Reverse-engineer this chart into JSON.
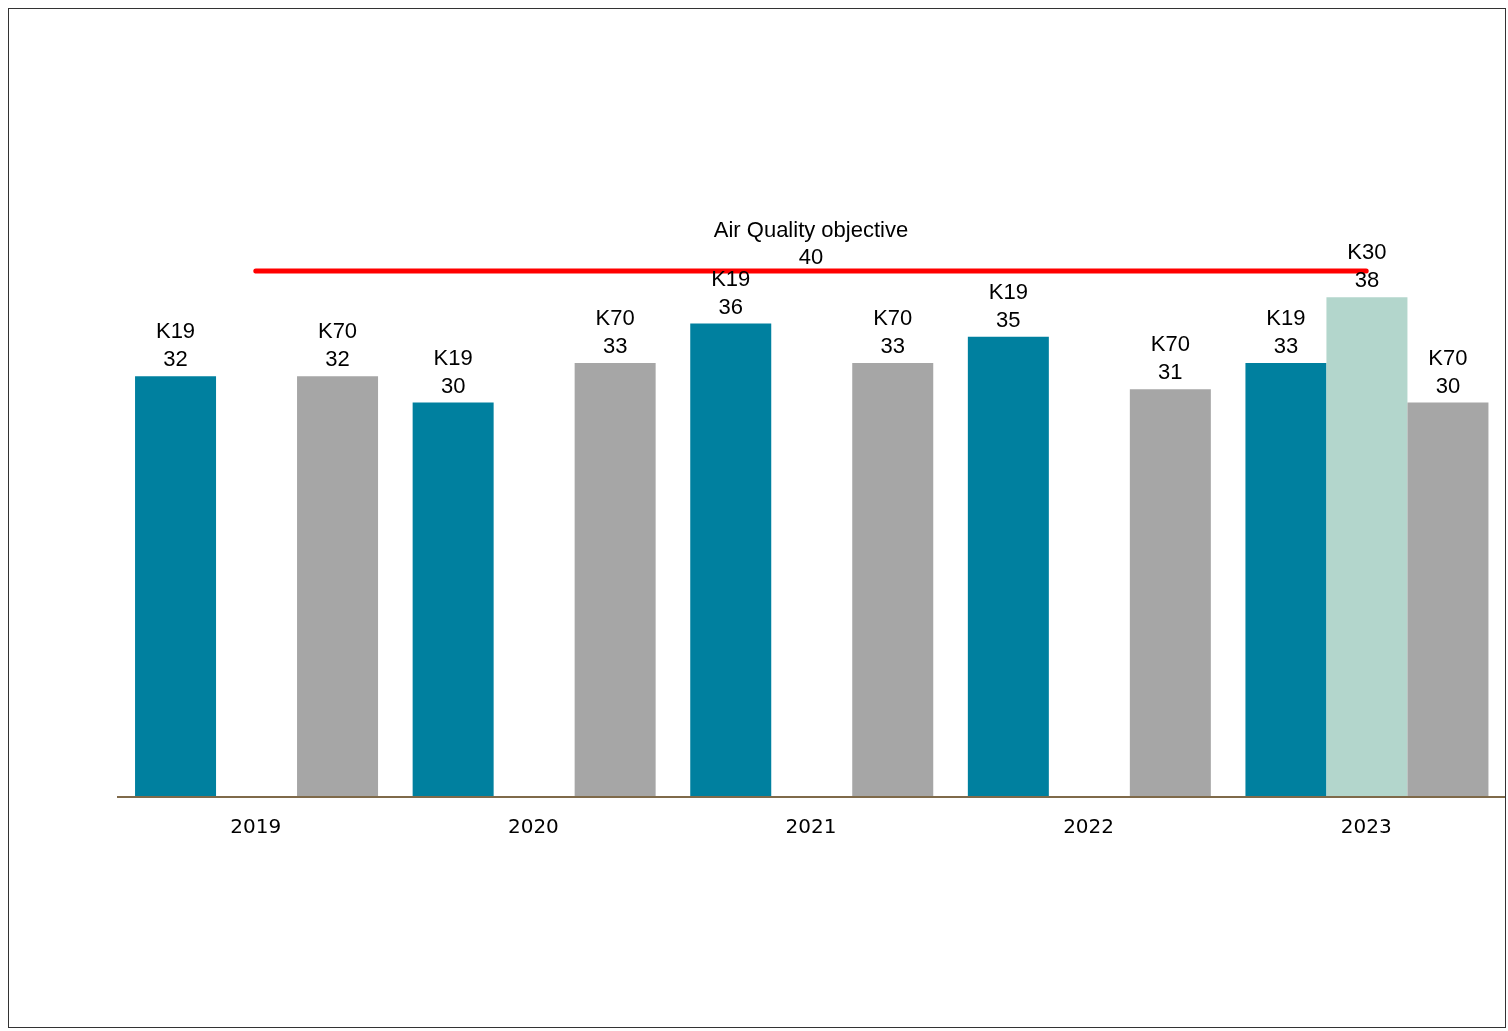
{
  "chart_data": {
    "type": "bar",
    "categories": [
      "2019",
      "2020",
      "2021",
      "2022",
      "2023"
    ],
    "series": [
      {
        "name": "K19",
        "color": "#00809f",
        "values": [
          32,
          30,
          36,
          35,
          33
        ]
      },
      {
        "name": "K30",
        "color": "#b3d6cc",
        "values": [
          null,
          null,
          null,
          null,
          38
        ]
      },
      {
        "name": "K70",
        "color": "#a6a6a6",
        "values": [
          32,
          33,
          33,
          31,
          30
        ]
      }
    ],
    "data_labels": true,
    "ref_lines": [
      {
        "axis": "y",
        "value": 40,
        "label": "Air Quality objective",
        "color": "#ff0000"
      }
    ],
    "annotations": [
      {
        "text": "40",
        "x": "2021",
        "y": 40
      }
    ],
    "legend": false,
    "grid": false
  }
}
